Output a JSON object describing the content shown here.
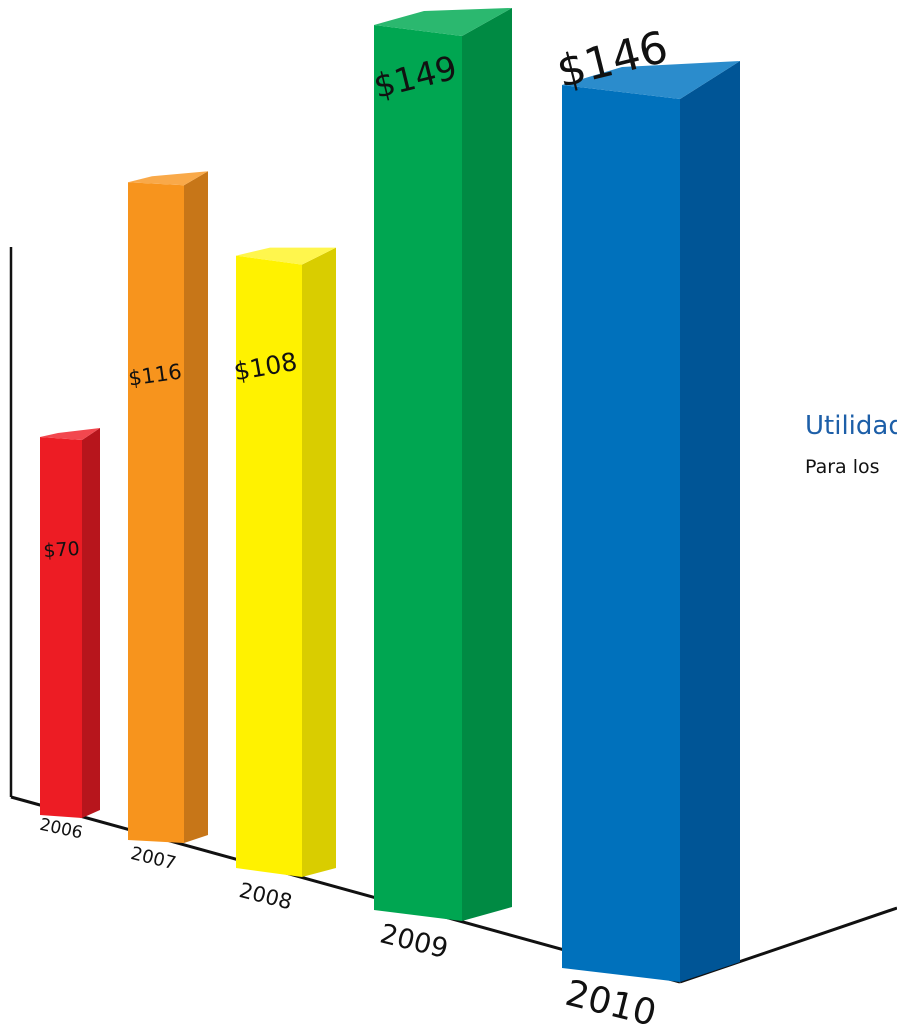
{
  "chart_data": {
    "type": "bar",
    "categories": [
      "2006",
      "2007",
      "2008",
      "2009",
      "2010"
    ],
    "values": [
      70,
      116,
      108,
      149,
      146
    ],
    "value_labels": [
      "$70",
      "$116",
      "$108",
      "$149",
      "$146"
    ],
    "colors": {
      "2006": {
        "front": "#ed1c24",
        "side": "#b7151c",
        "top": "#f2474e"
      },
      "2007": {
        "front": "#f7941d",
        "side": "#c77618",
        "top": "#f9a949"
      },
      "2008": {
        "front": "#fff200",
        "side": "#d9cd00",
        "top": "#fff64d"
      },
      "2009": {
        "front": "#00a651",
        "side": "#008a43",
        "top": "#2bb86f"
      },
      "2010": {
        "front": "#0071bc",
        "side": "#005596",
        "top": "#2b8ccc"
      }
    },
    "legend": {
      "title": "Utilidad",
      "subtitle": "Para los"
    },
    "style": "3d-perspective"
  }
}
